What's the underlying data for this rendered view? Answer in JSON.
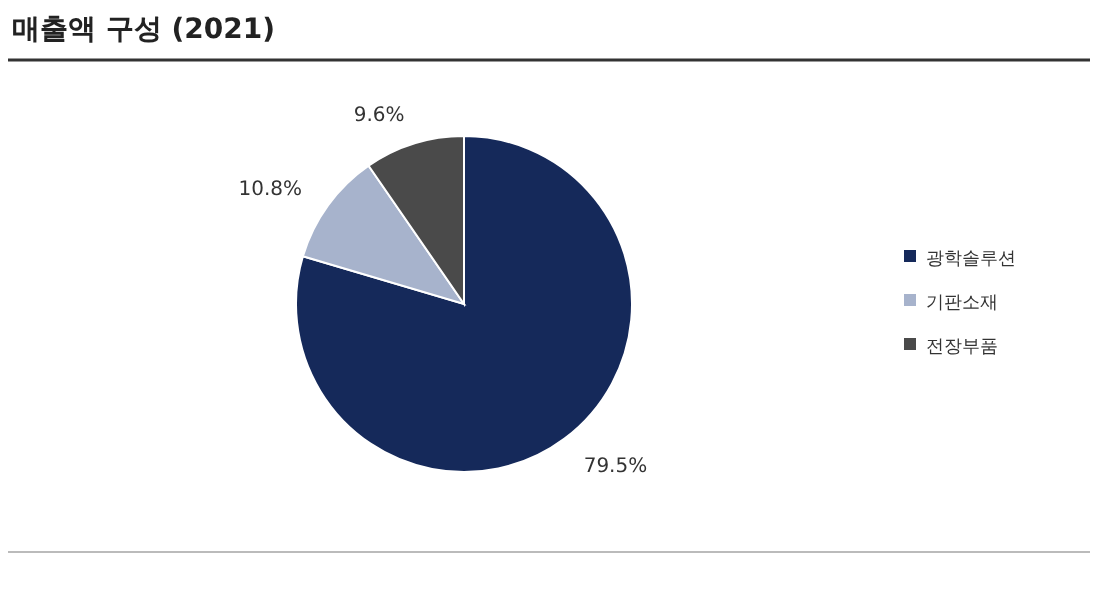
{
  "chart_data": {
    "type": "pie",
    "title": "매출액 구성 (2021)",
    "categories": [
      "광학솔루션",
      "기판소재",
      "전장부품"
    ],
    "values": [
      79.5,
      10.8,
      9.6
    ],
    "colors": [
      "#15295a",
      "#a7b3cc",
      "#4a4a4a"
    ],
    "value_labels": [
      "79.5%",
      "10.8%",
      "9.6%"
    ],
    "legend": "right"
  }
}
